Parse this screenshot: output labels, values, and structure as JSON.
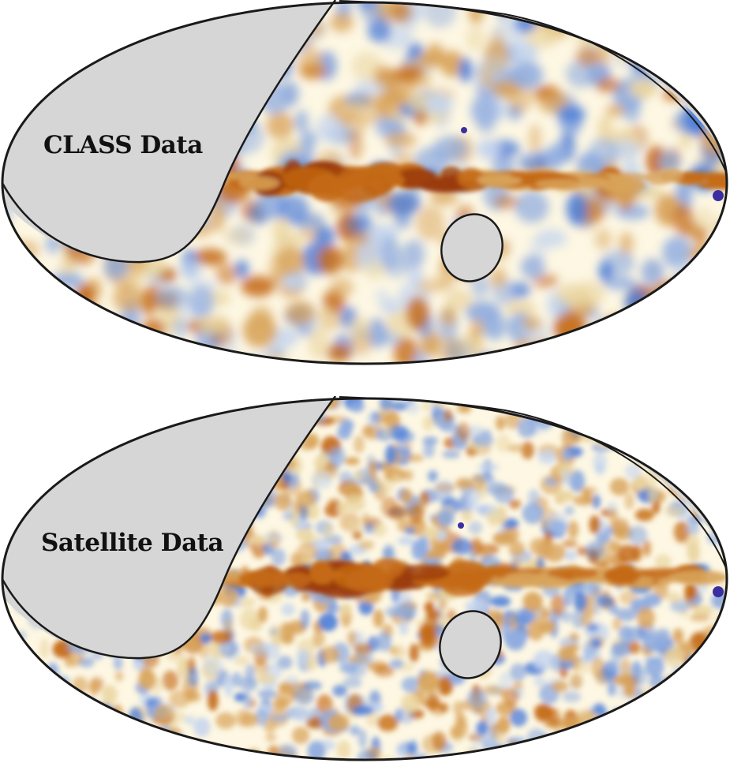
{
  "panels": [
    {
      "id": "class",
      "label": "CLASS Data",
      "noise_density": "smooth"
    },
    {
      "id": "satellite",
      "label": "Satellite Data",
      "noise_density": "grainy"
    }
  ],
  "colors": {
    "background": "#fdf7e3",
    "mask": "#d6d6d6",
    "outline": "#1a1a1a",
    "warm_light": "#ead5a0",
    "warm_mid": "#d8a35a",
    "warm_strong": "#c46a14",
    "warm_deep": "#9a3a08",
    "cool_light": "#c5d5ee",
    "cool_mid": "#8eabdf",
    "cool_strong": "#4f7fd8",
    "point_source": "#3a2ea0"
  }
}
